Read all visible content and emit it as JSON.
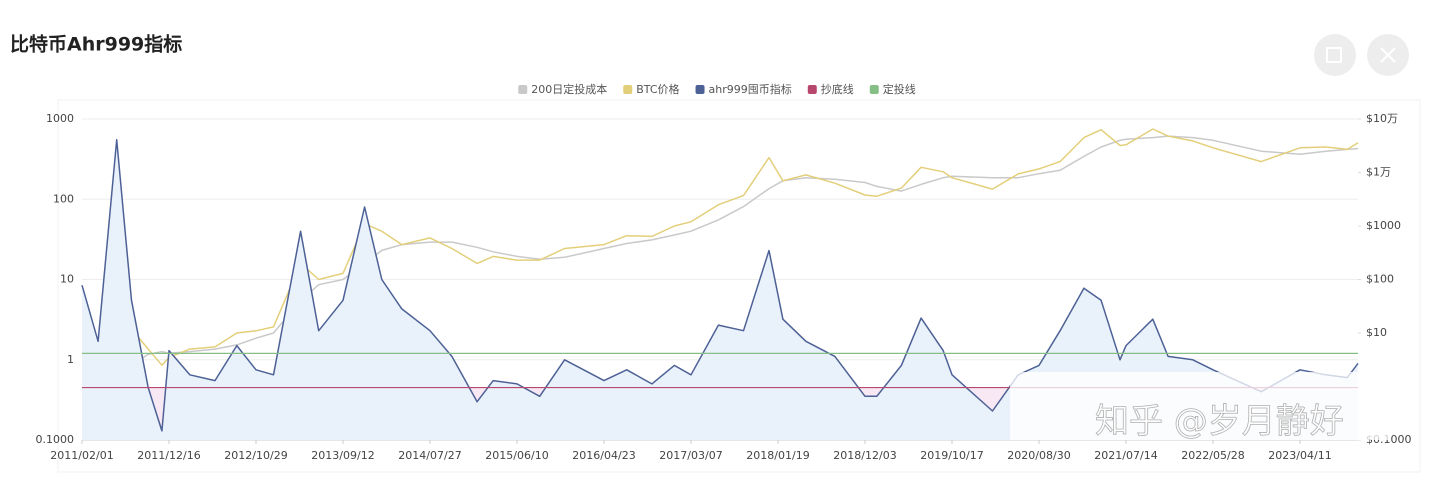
{
  "header": {
    "title": "比特币Ahr999指标"
  },
  "watermark": "知乎 @岁月静好",
  "chart_data": {
    "type": "line",
    "log_scale": true,
    "grid": true,
    "legend": "top",
    "x": [
      "2011/02/01",
      "2011/04/01",
      "2011/06/08",
      "2011/08/01",
      "2011/10/01",
      "2011/11/20",
      "2011/12/16",
      "2012/03/01",
      "2012/06/01",
      "2012/08/20",
      "2012/10/29",
      "2013/01/01",
      "2013/04/10",
      "2013/06/15",
      "2013/09/12",
      "2013/11/30",
      "2014/02/01",
      "2014/04/15",
      "2014/07/27",
      "2014/10/15",
      "2015/01/15",
      "2015/03/15",
      "2015/06/10",
      "2015/09/01",
      "2015/12/01",
      "2016/04/23",
      "2016/07/15",
      "2016/10/15",
      "2017/01/05",
      "2017/03/07",
      "2017/06/15",
      "2017/09/15",
      "2017/12/17",
      "2018/02/06",
      "2018/05/01",
      "2018/08/15",
      "2018/12/03",
      "2019/01/15",
      "2019/04/15",
      "2019/06/26",
      "2019/09/15",
      "2019/10/17",
      "2020/03/13",
      "2020/06/15",
      "2020/08/30",
      "2020/11/15",
      "2021/02/10",
      "2021/04/14",
      "2021/06/22",
      "2021/07/14",
      "2021/10/20",
      "2021/12/15",
      "2022/03/15",
      "2022/05/28",
      "2022/11/20",
      "2023/04/11",
      "2023/07/15",
      "2023/10/01",
      "2023/11/09"
    ],
    "xlim": [
      "2011/02/01",
      "2023/11/09"
    ],
    "xticks": [
      "2011/02/01",
      "2011/12/16",
      "2012/10/29",
      "2013/09/12",
      "2014/07/27",
      "2015/06/10",
      "2016/04/23",
      "2017/03/07",
      "2018/01/19",
      "2018/12/03",
      "2019/10/17",
      "2020/08/30",
      "2021/07/14",
      "2022/05/28",
      "2023/04/11"
    ],
    "ylim": [
      0.1,
      1000
    ],
    "yticks": [
      {
        "value": 0.1,
        "label": "0.1000"
      },
      1,
      10,
      100,
      1000
    ],
    "y2lim": [
      0.1,
      100000
    ],
    "y2ticks": [
      {
        "value": 0.1,
        "label": "$0.1000"
      },
      {
        "value": 10,
        "label": "$10"
      },
      {
        "value": 100,
        "label": "$100"
      },
      {
        "value": 1000,
        "label": "$1000"
      },
      {
        "value": 10000,
        "label": "$1万"
      },
      {
        "value": 100000,
        "label": "$10万"
      }
    ],
    "series": [
      {
        "name": "200日定投成本",
        "color": "#c9c9c9",
        "axis": "y2",
        "values": [
          0.3,
          0.35,
          1.0,
          2.5,
          4,
          4.5,
          4.2,
          4.5,
          5,
          6,
          8,
          10,
          40,
          80,
          100,
          200,
          350,
          450,
          500,
          500,
          400,
          330,
          270,
          240,
          260,
          380,
          470,
          550,
          680,
          800,
          1300,
          2300,
          5000,
          7000,
          8000,
          7500,
          6500,
          5500,
          4500,
          6000,
          8000,
          8500,
          8000,
          8000,
          9500,
          11000,
          20000,
          30000,
          40000,
          42000,
          45000,
          48000,
          45000,
          40000,
          25000,
          22000,
          25000,
          27000,
          28000
        ]
      },
      {
        "name": "BTC价格",
        "color": "#e3cf7a",
        "axis": "y2",
        "values": [
          0.6,
          0.8,
          25,
          12,
          5,
          2.5,
          3.5,
          5,
          5.5,
          10,
          11,
          13,
          200,
          100,
          130,
          1100,
          800,
          450,
          600,
          380,
          200,
          270,
          230,
          230,
          380,
          450,
          660,
          640,
          1000,
          1200,
          2500,
          3700,
          19000,
          7000,
          9000,
          6300,
          3800,
          3600,
          5100,
          12500,
          10300,
          8000,
          4900,
          9400,
          11700,
          16000,
          45000,
          63000,
          32000,
          33000,
          65000,
          48000,
          39000,
          29000,
          16000,
          29000,
          30000,
          27000,
          36000
        ]
      },
      {
        "name": "ahr999囤币指标",
        "color": "#4d6196",
        "fill": "#e9f1fa",
        "values": [
          8.5,
          1.7,
          550,
          5.5,
          0.45,
          0.13,
          1.3,
          0.65,
          0.55,
          1.5,
          0.75,
          0.65,
          40,
          2.3,
          5.5,
          80,
          10,
          4.3,
          2.3,
          1.1,
          0.3,
          0.55,
          0.5,
          0.35,
          1,
          0.55,
          0.75,
          0.5,
          0.85,
          0.65,
          2.7,
          2.3,
          23,
          3.2,
          1.7,
          1.1,
          0.35,
          0.35,
          0.85,
          3.3,
          1.3,
          0.65,
          0.23,
          0.65,
          0.85,
          2.3,
          7.8,
          5.5,
          1,
          1.5,
          3.2,
          1.1,
          1,
          0.75,
          0.4,
          0.75,
          0.65,
          0.6,
          0.9
        ]
      },
      {
        "name": "抄底线",
        "color": "#b8476d",
        "fill": "#f7e8f4",
        "y": 0.45
      },
      {
        "name": "定投线",
        "color": "#86bf86",
        "y": 1.2
      }
    ]
  }
}
